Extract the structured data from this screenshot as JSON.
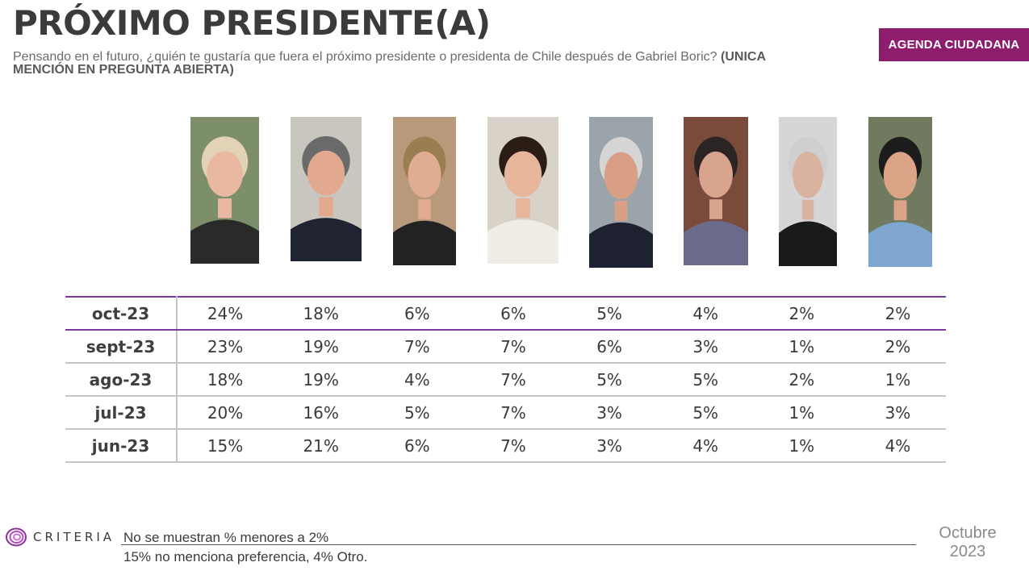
{
  "header": {
    "title": "PRÓXIMO PRESIDENTE(A)",
    "subtitle": "Pensando en el futuro, ¿quién te gustaría que fuera el próximo presidente o presidenta de Chile después de Gabriel Boric?",
    "subtitle_bold": "(UNICA MENCIÓN EN PREGUNTA ABIERTA)",
    "badge": "AGENDA CIUDADANA"
  },
  "chart_data": {
    "type": "table",
    "rows": [
      {
        "label": "oct-23",
        "values": [
          "24%",
          "18%",
          "6%",
          "6%",
          "5%",
          "4%",
          "2%",
          "2%"
        ]
      },
      {
        "label": "sept-23",
        "values": [
          "23%",
          "19%",
          "7%",
          "7%",
          "6%",
          "3%",
          "1%",
          "2%"
        ]
      },
      {
        "label": "ago-23",
        "values": [
          "18%",
          "19%",
          "4%",
          "7%",
          "5%",
          "5%",
          "2%",
          "1%"
        ]
      },
      {
        "label": "jul-23",
        "values": [
          "20%",
          "16%",
          "5%",
          "7%",
          "3%",
          "5%",
          "1%",
          "3%"
        ]
      },
      {
        "label": "jun-23",
        "values": [
          "15%",
          "21%",
          "6%",
          "7%",
          "3%",
          "4%",
          "1%",
          "4%"
        ]
      }
    ]
  },
  "photos": [
    {
      "bg": "#7d8f6a",
      "skin": "#e8b9a0",
      "hair": "#e2d3b6",
      "cloth": "#2a2a2a"
    },
    {
      "bg": "#c9c6c0",
      "skin": "#e2a98e",
      "hair": "#6a6a6a",
      "cloth": "#1f2430"
    },
    {
      "bg": "#b89a7a",
      "skin": "#e0ad92",
      "hair": "#9b7d52",
      "cloth": "#222222"
    },
    {
      "bg": "#d9d2c8",
      "skin": "#e7b59a",
      "hair": "#2b1c16",
      "cloth": "#f1ede6"
    },
    {
      "bg": "#9aa4aa",
      "skin": "#d89e86",
      "hair": "#d5d5d5",
      "cloth": "#1e2230"
    },
    {
      "bg": "#7a4a3a",
      "skin": "#d9a48e",
      "hair": "#2a2424",
      "cloth": "#6a6b8a"
    },
    {
      "bg": "#d6d6d6",
      "skin": "#d9b3a0",
      "hair": "#cfcfcf",
      "cloth": "#1a1a1a"
    },
    {
      "bg": "#6f7a5e",
      "skin": "#dca486",
      "hair": "#1c1c1c",
      "cloth": "#7fa6cf"
    }
  ],
  "footer": {
    "logo": "CRITERIA",
    "note1": "No se muestran % menores a 2%",
    "note2": "15% no menciona preferencia, 4% Otro.",
    "date_line1": "Octubre",
    "date_line2": "2023"
  }
}
